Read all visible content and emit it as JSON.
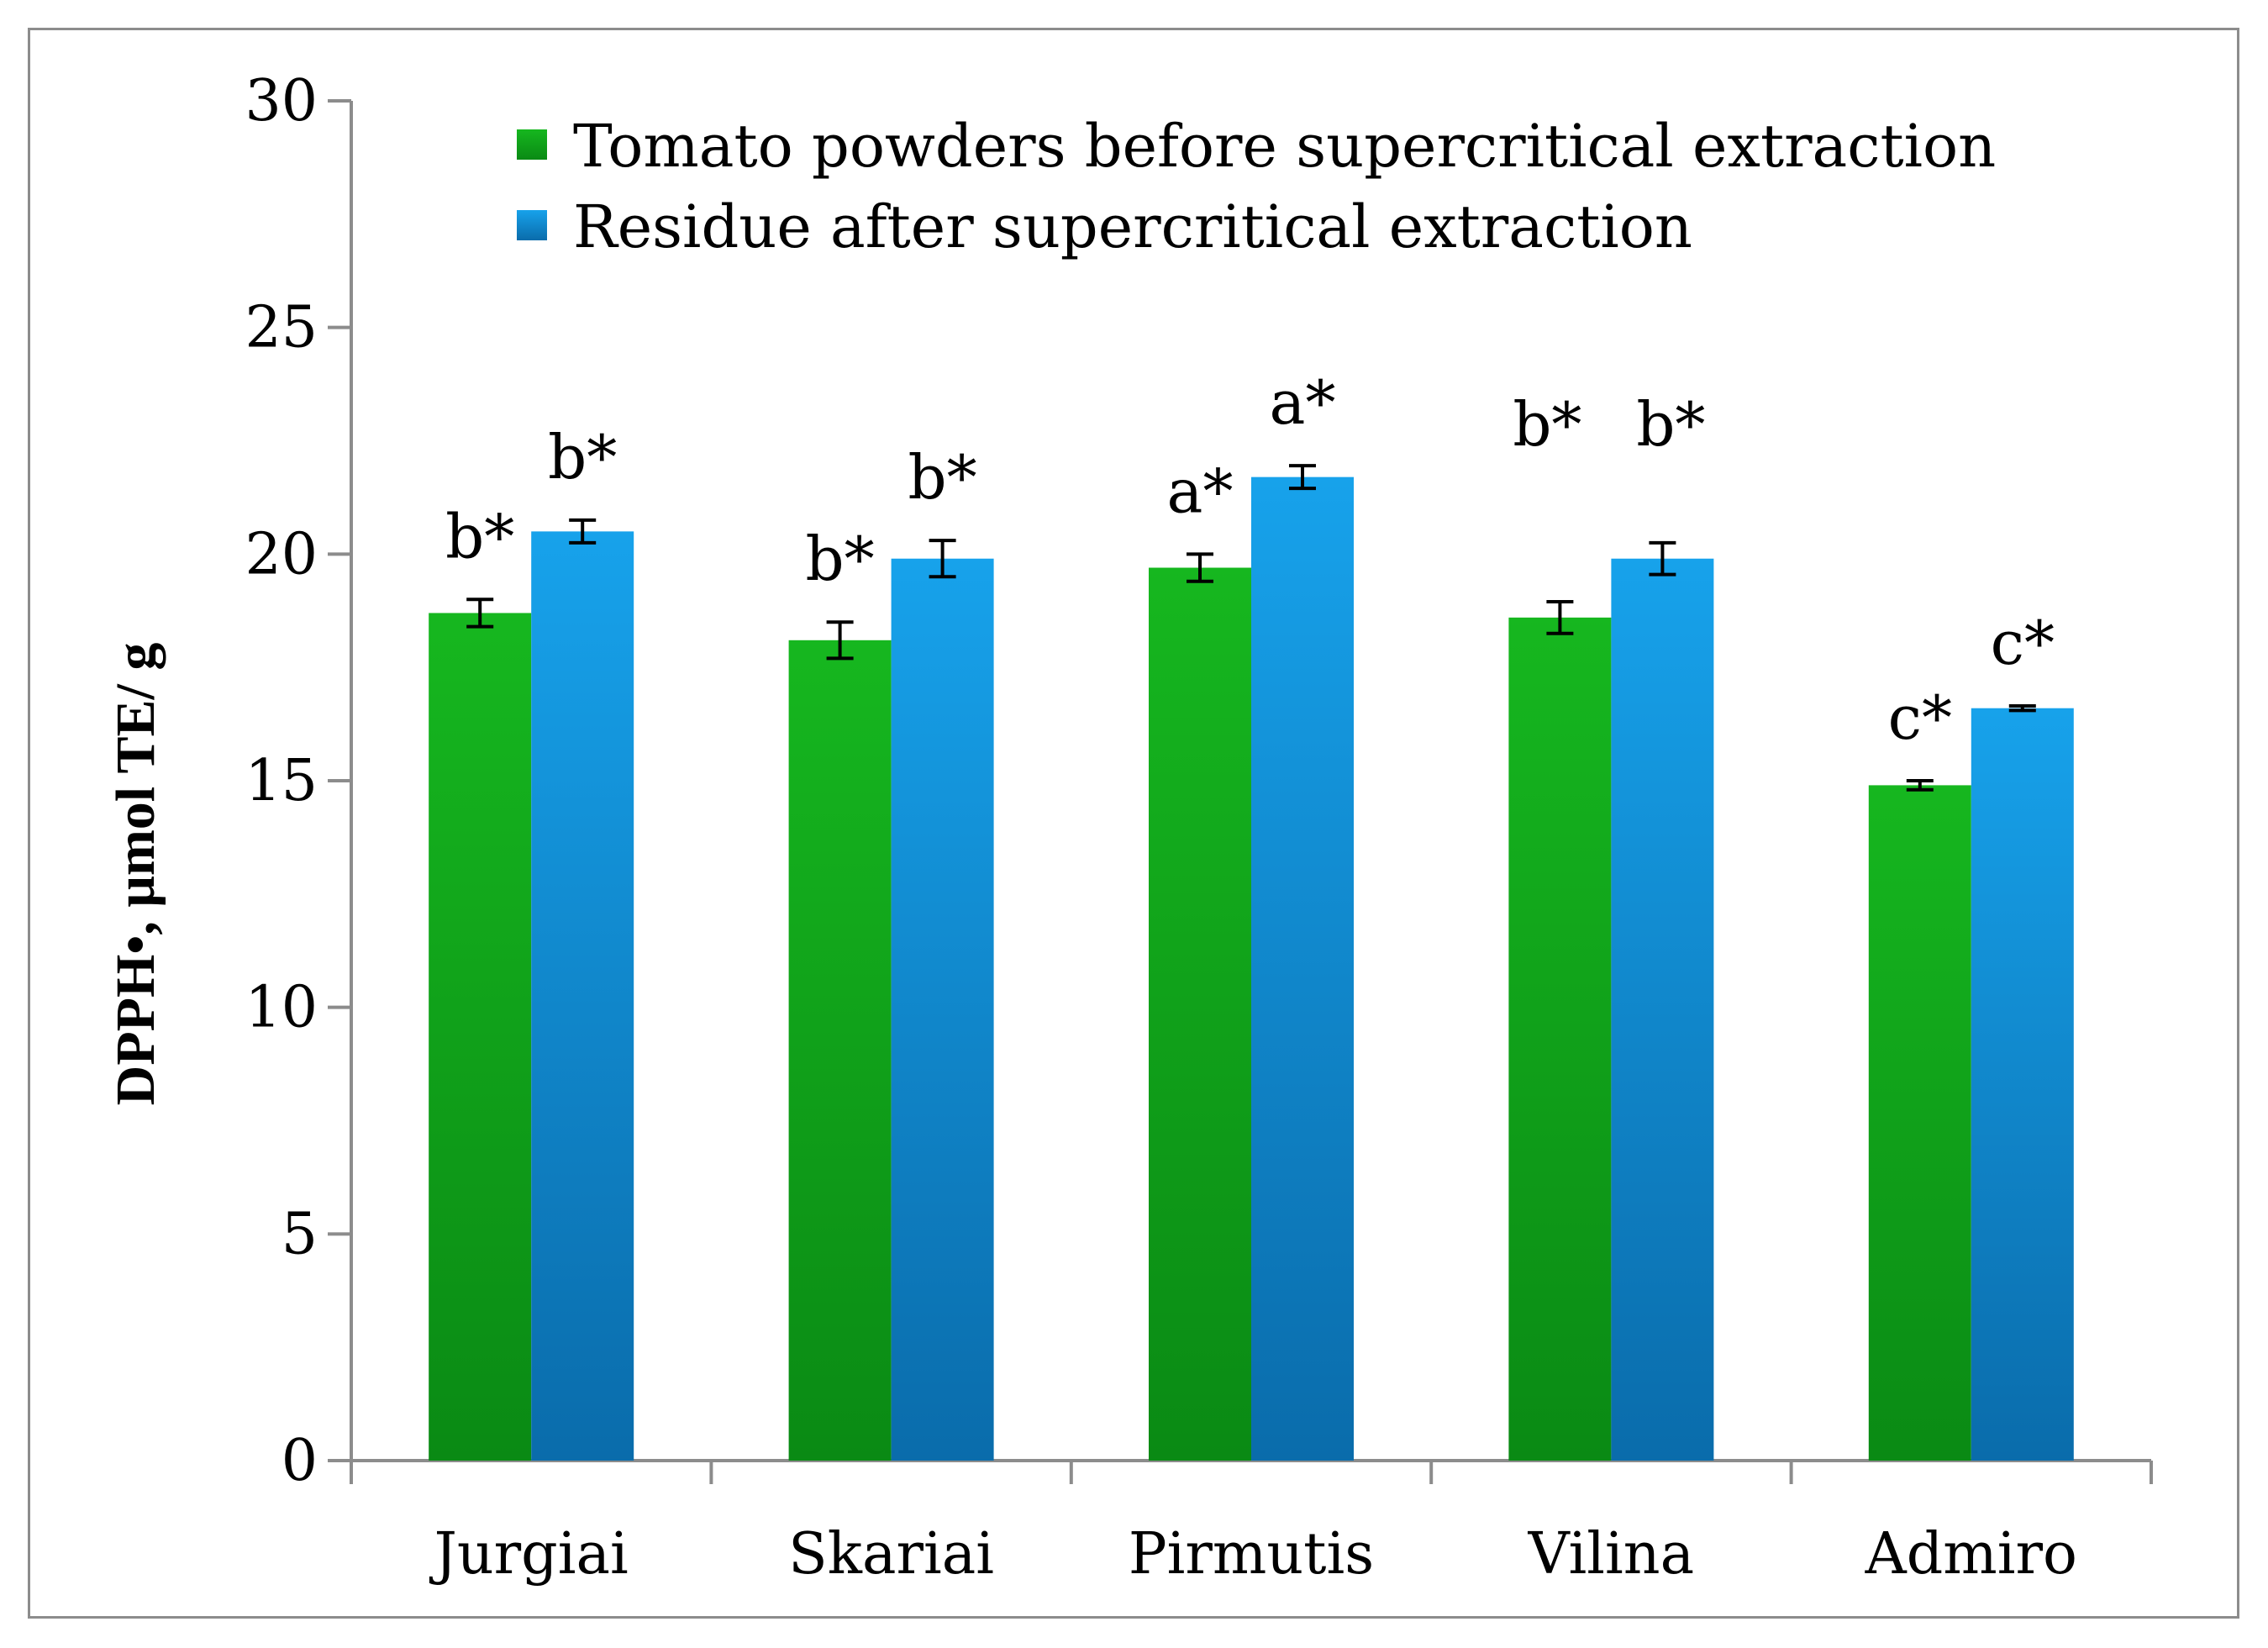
{
  "chart_data": {
    "type": "bar",
    "title": "",
    "xlabel": "",
    "ylabel": "DPPH•, μmol TE/ g",
    "ylim": [
      0,
      30
    ],
    "yticks": [
      "0",
      "5",
      "10",
      "15",
      "20",
      "25",
      "30"
    ],
    "grid": false,
    "legend_position": "top-center",
    "categories": [
      "Jurgiai",
      "Skariai",
      "Pirmutis",
      "Vilina",
      "Admiro"
    ],
    "series": [
      {
        "name": "Tomato powders before supercritical extraction",
        "color": "#1aad24",
        "color_dark": "#0b8a17",
        "values": [
          18.7,
          18.1,
          19.7,
          18.6,
          14.9
        ],
        "errors": [
          0.3,
          0.4,
          0.3,
          0.35,
          0.1
        ],
        "labels": [
          "b*",
          "b*",
          "a*",
          "b*",
          "c*"
        ]
      },
      {
        "name": "Residue after supercritical extraction",
        "color": "#1a9be0",
        "color_dark": "#0b70ad",
        "values": [
          20.5,
          19.9,
          21.7,
          19.9,
          16.6
        ],
        "errors": [
          0.25,
          0.4,
          0.25,
          0.35,
          0.05
        ],
        "labels": [
          "b*",
          "b*",
          "a*",
          "b*",
          "c*"
        ]
      }
    ]
  }
}
